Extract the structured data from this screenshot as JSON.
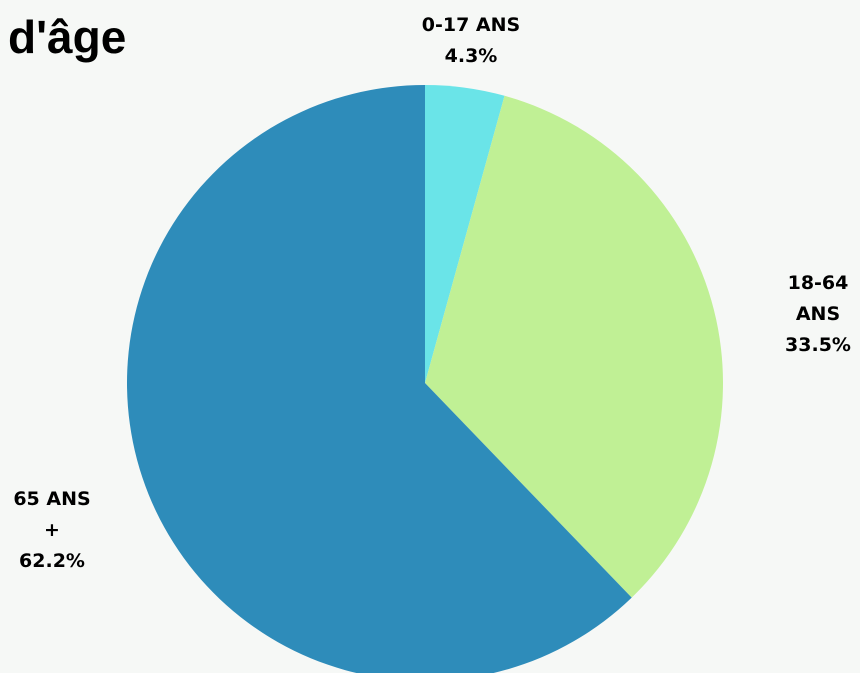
{
  "title": "d'âge",
  "chart_data": {
    "type": "pie",
    "title": "d'âge",
    "slices": [
      {
        "label": "0-17 ANS",
        "value": 4.3,
        "value_label": "4.3%",
        "color": "#6ae4e8"
      },
      {
        "label": "18-64 ANS",
        "value": 33.5,
        "value_label": "33.5%",
        "color": "#c0f095"
      },
      {
        "label": "65 ANS +",
        "value": 62.2,
        "value_label": "62.2%",
        "color": "#2e8cba"
      }
    ],
    "start": "top",
    "direction": "clockwise",
    "legend": "none",
    "labels": "outside"
  }
}
